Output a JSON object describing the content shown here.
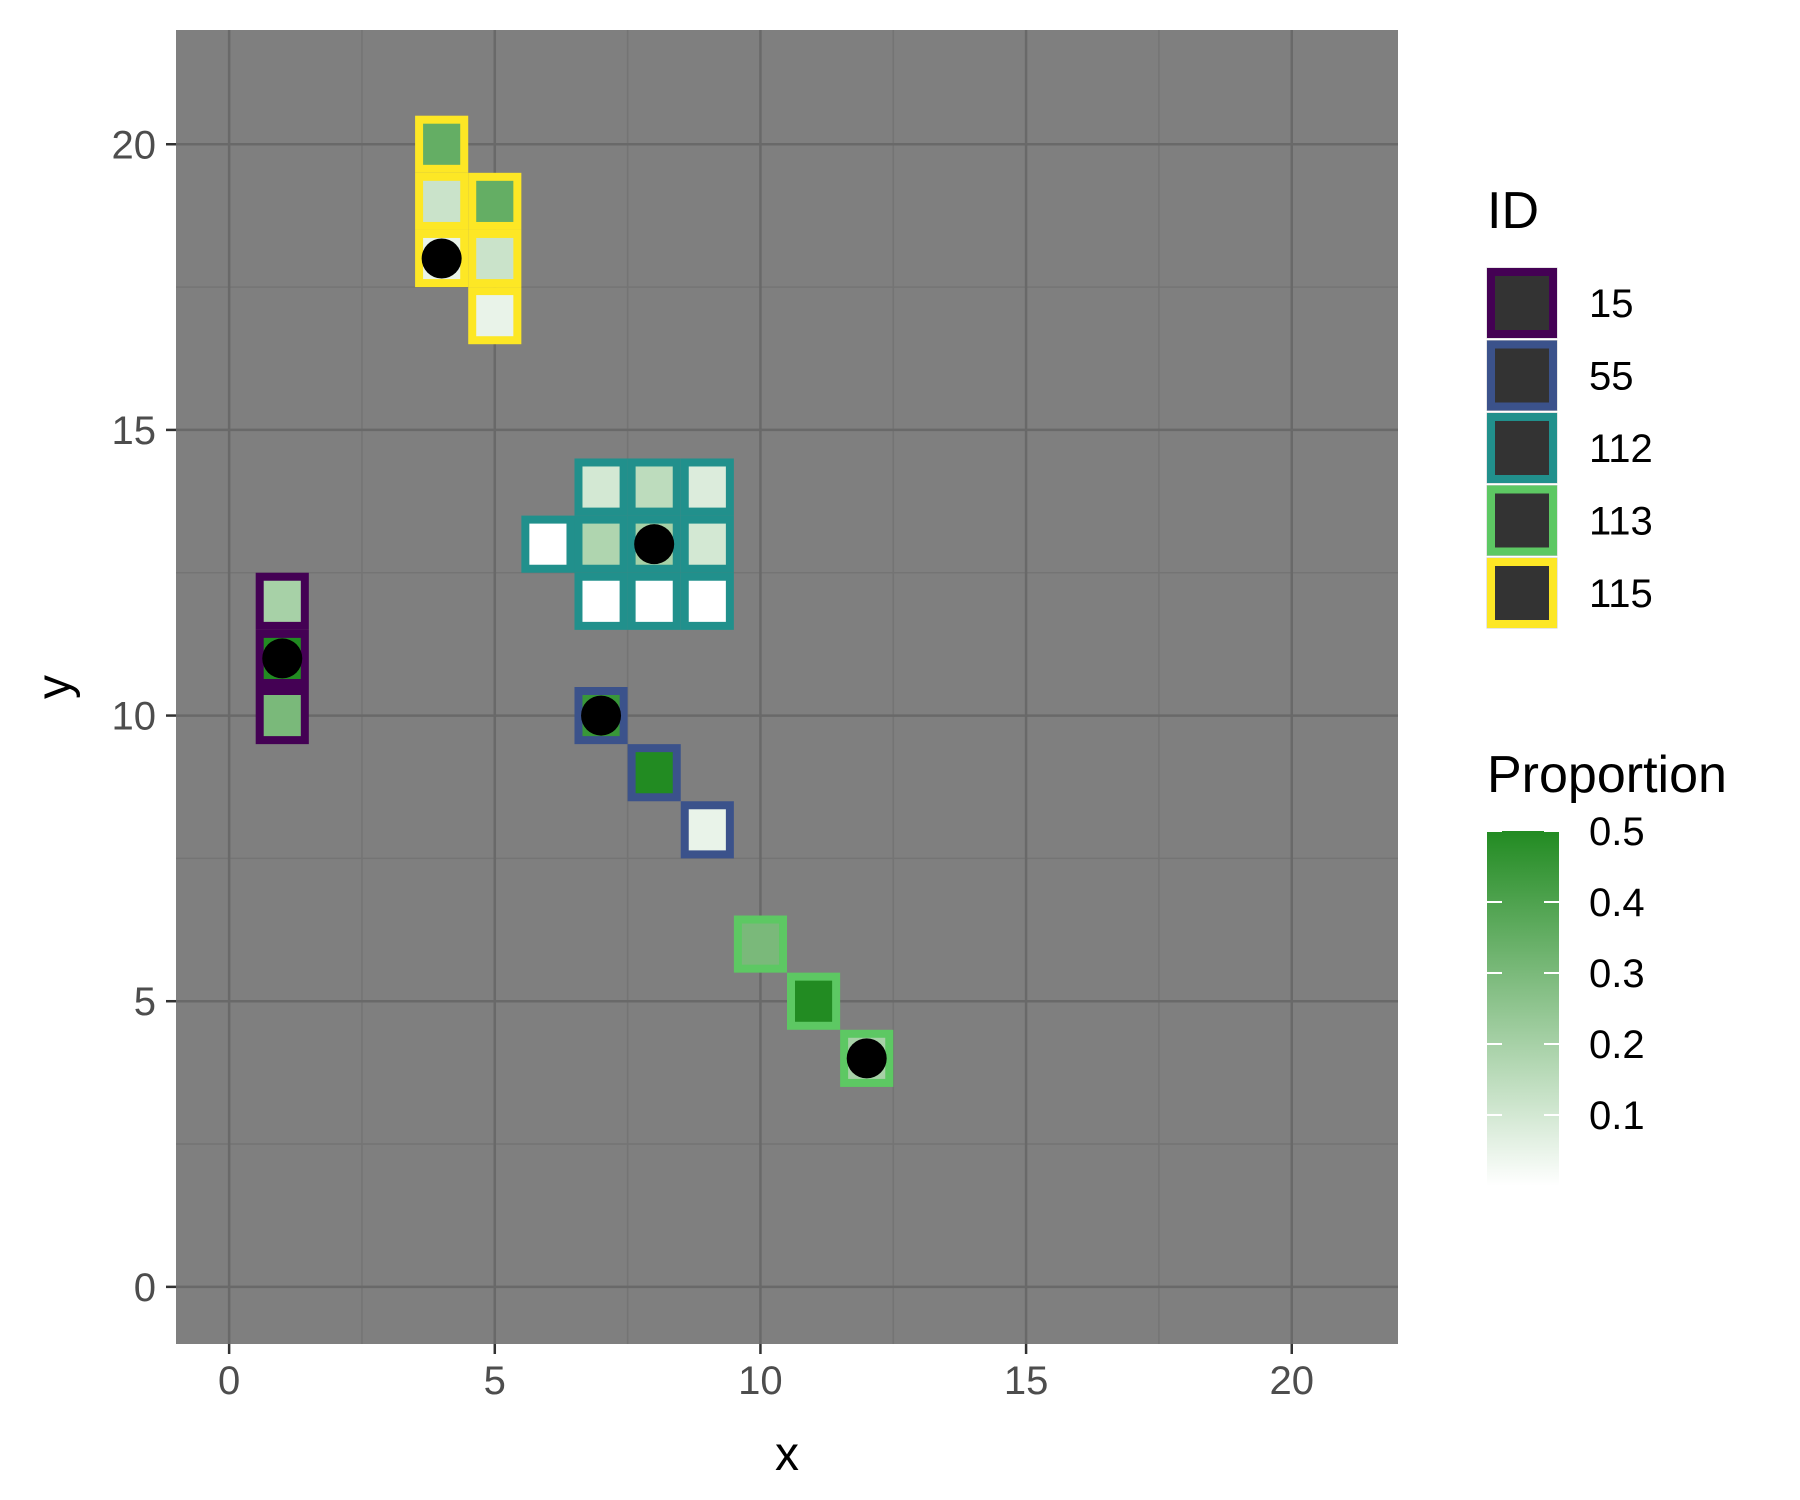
{
  "chart_data": {
    "type": "heatmap",
    "title": "",
    "xlabel": "x",
    "ylabel": "y",
    "xlim": [
      -1,
      22
    ],
    "ylim": [
      -1,
      22
    ],
    "x_ticks": [
      0,
      5,
      10,
      15,
      20
    ],
    "y_ticks": [
      0,
      5,
      10,
      15,
      20
    ],
    "grid": true,
    "background_color": "#7f7f7f",
    "grid_major_color": "#696969",
    "grid_minor_color": "#747474",
    "fill_low_color": "#ffffff",
    "fill_high_color": "#228b22",
    "groups": [
      {
        "id": "15",
        "color": "#440154",
        "center": [
          1,
          11
        ],
        "cells": [
          {
            "x": 1,
            "y": 12,
            "proportion": 0.2
          },
          {
            "x": 1,
            "y": 11,
            "proportion": 0.5
          },
          {
            "x": 1,
            "y": 10,
            "proportion": 0.3
          }
        ]
      },
      {
        "id": "55",
        "color": "#3b528b",
        "center": [
          7,
          10
        ],
        "cells": [
          {
            "x": 7,
            "y": 10,
            "proportion": 0.45
          },
          {
            "x": 8,
            "y": 9,
            "proportion": 0.5
          },
          {
            "x": 9,
            "y": 8,
            "proportion": 0.05
          }
        ]
      },
      {
        "id": "112",
        "color": "#21908c",
        "center": [
          8,
          13
        ],
        "cells": [
          {
            "x": 7,
            "y": 14,
            "proportion": 0.1
          },
          {
            "x": 8,
            "y": 14,
            "proportion": 0.15
          },
          {
            "x": 9,
            "y": 14,
            "proportion": 0.08
          },
          {
            "x": 6,
            "y": 13,
            "proportion": 0.0
          },
          {
            "x": 7,
            "y": 13,
            "proportion": 0.18
          },
          {
            "x": 8,
            "y": 13,
            "proportion": 0.2
          },
          {
            "x": 9,
            "y": 13,
            "proportion": 0.1
          },
          {
            "x": 7,
            "y": 12,
            "proportion": 0.0
          },
          {
            "x": 8,
            "y": 12,
            "proportion": 0.0
          },
          {
            "x": 9,
            "y": 12,
            "proportion": 0.0
          }
        ]
      },
      {
        "id": "113",
        "color": "#5dc863",
        "center": [
          12,
          4
        ],
        "cells": [
          {
            "x": 10,
            "y": 6,
            "proportion": 0.3
          },
          {
            "x": 11,
            "y": 5,
            "proportion": 0.5
          },
          {
            "x": 12,
            "y": 4,
            "proportion": 0.2
          }
        ]
      },
      {
        "id": "115",
        "color": "#fde725",
        "center": [
          4,
          18
        ],
        "cells": [
          {
            "x": 4,
            "y": 20,
            "proportion": 0.35
          },
          {
            "x": 4,
            "y": 19,
            "proportion": 0.12
          },
          {
            "x": 5,
            "y": 19,
            "proportion": 0.35
          },
          {
            "x": 4,
            "y": 18,
            "proportion": 0.05
          },
          {
            "x": 5,
            "y": 18,
            "proportion": 0.12
          },
          {
            "x": 5,
            "y": 17,
            "proportion": 0.05
          }
        ]
      }
    ],
    "legend_id": {
      "title": "ID",
      "position": "right",
      "entries": [
        "15",
        "55",
        "112",
        "113",
        "115"
      ],
      "key_fill": "#333333"
    },
    "legend_proportion": {
      "title": "Proportion",
      "position": "right",
      "range": [
        0,
        0.5
      ],
      "breaks": [
        0.1,
        0.2,
        0.3,
        0.4,
        0.5
      ],
      "break_labels": [
        "0.1",
        "0.2",
        "0.3",
        "0.4",
        "0.5"
      ]
    }
  }
}
